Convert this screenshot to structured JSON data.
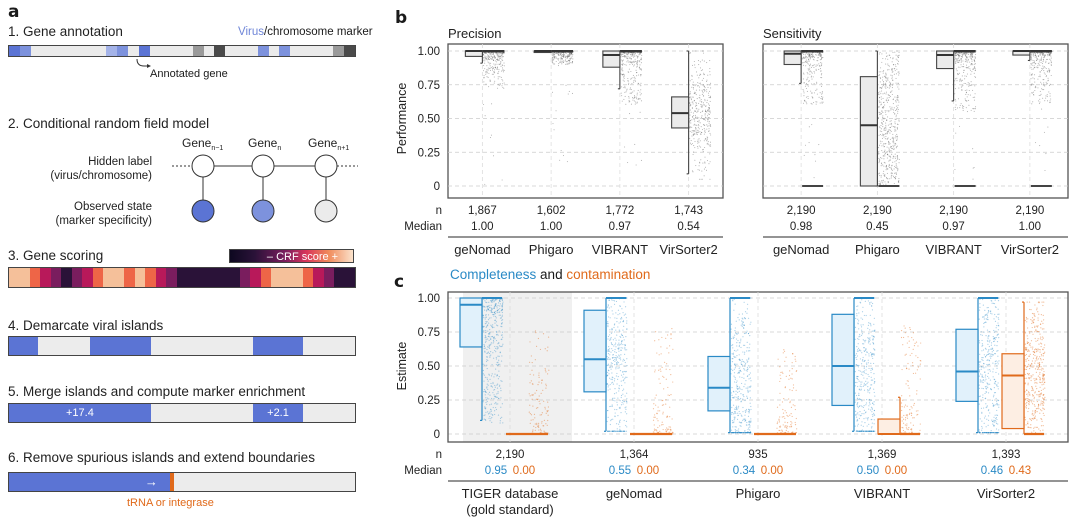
{
  "panel_a": {
    "letter": "a",
    "step1": {
      "title": "1. Gene annotation",
      "legend_virus": "Virus",
      "legend_rest": "/chromosome marker",
      "annotation": "Annotated gene",
      "colors": {
        "virus_strong": "#5b74d4",
        "virus_mid": "#7d92dd",
        "virus_light": "#a4b3e8",
        "chrom_mid": "#9a9a9a",
        "chrom_dark": "#4a4a4a",
        "none": "#ebebeb"
      },
      "segments": [
        "virus_strong",
        "virus_mid",
        "none",
        "none",
        "none",
        "none",
        "none",
        "none",
        "none",
        "virus_light",
        "virus_mid",
        "none",
        "virus_strong",
        "none",
        "none",
        "none",
        "none",
        "chrom_mid",
        "none",
        "chrom_dark",
        "none",
        "none",
        "none",
        "virus_mid",
        "none",
        "virus_mid",
        "none",
        "none",
        "none",
        "none",
        "chrom_mid",
        "chrom_dark"
      ]
    },
    "step2": {
      "title": "2. Conditional random field model",
      "genes": [
        "Gene",
        "Gene",
        "Gene"
      ],
      "gene_subscripts": [
        "n−1",
        "n",
        "n+1"
      ],
      "hidden_label": "Hidden label",
      "hidden_label_sub": "(virus/chromosome)",
      "observed_label": "Observed state",
      "observed_label_sub": "(marker specificity)",
      "observed_colors": [
        "#5b74d4",
        "#7d92dd",
        "#ebebeb"
      ]
    },
    "step3": {
      "title": "3. Gene scoring",
      "colorbar_label": "– CRF score +",
      "segments": [
        "#f5c09a",
        "#f5c09a",
        "#ee6547",
        "#b8195a",
        "#7a1d5e",
        "#2a1238",
        "#7a1d5e",
        "#b8195a",
        "#ee6547",
        "#f5c09a",
        "#f5c09a",
        "#ee6547",
        "#f5c09a",
        "#ee6547",
        "#b8195a",
        "#7a1d5e",
        "#2a1238",
        "#2a1238",
        "#2a1238",
        "#2a1238",
        "#2a1238",
        "#2a1238",
        "#7a1d5e",
        "#b8195a",
        "#ee6547",
        "#f5c09a",
        "#f5c09a",
        "#f5c09a",
        "#ee6547",
        "#b8195a",
        "#7a1d5e",
        "#2a1238",
        "#2a1238"
      ]
    },
    "step4": {
      "title": "4. Demarcate viral islands",
      "islands": [
        [
          0,
          0.085
        ],
        [
          0.235,
          0.41
        ],
        [
          0.705,
          0.85
        ]
      ]
    },
    "step5": {
      "title": "5. Merge islands and compute marker enrichment",
      "islands": [
        {
          "range": [
            0,
            0.41
          ],
          "label": "+17.4"
        },
        {
          "range": [
            0.705,
            0.85
          ],
          "label": "+2.1"
        }
      ]
    },
    "step6": {
      "title": "6. Remove spurious islands and extend boundaries",
      "island_end": 0.465,
      "marker_label": "tRNA or integrase",
      "arrow": "→"
    },
    "virus_color": "#5b74d4",
    "marker_color": "#e06a1b"
  },
  "panel_b": {
    "letter": "b",
    "row_n_label": "n",
    "row_median_label": "Median",
    "chart_data": [
      {
        "type": "box",
        "title": "Precision",
        "ylabel": "Performance",
        "ylim": [
          0,
          1
        ],
        "yticks": [
          "0",
          "0.25",
          "0.50",
          "0.75",
          "1.00"
        ],
        "categories": [
          "geNomad",
          "Phigaro",
          "VIBRANT",
          "VirSorter2"
        ],
        "n": [
          "1,867",
          "1,602",
          "1,772",
          "1,743"
        ],
        "median": [
          "1.00",
          "1.00",
          "0.97",
          "0.54"
        ],
        "boxes": [
          {
            "q1": 0.96,
            "median": 1.0,
            "q3": 1.0,
            "whisker_low": 0.91,
            "whisker_high": 1.0,
            "points_spread": [
              0.72,
              1.0
            ],
            "sparse_low": 0.0
          },
          {
            "q1": 0.995,
            "median": 1.0,
            "q3": 1.0,
            "whisker_low": 0.99,
            "whisker_high": 1.0,
            "points_spread": [
              0.9,
              1.0
            ],
            "sparse_low": 0.15
          },
          {
            "q1": 0.88,
            "median": 0.97,
            "q3": 1.0,
            "whisker_low": 0.72,
            "whisker_high": 1.0,
            "points_spread": [
              0.6,
              1.0
            ],
            "sparse_low": 0.1
          },
          {
            "q1": 0.43,
            "median": 0.54,
            "q3": 0.66,
            "whisker_low": 0.09,
            "whisker_high": 1.0,
            "points_spread": [
              0.1,
              1.0
            ],
            "sparse_low": 0.05
          }
        ]
      },
      {
        "type": "box",
        "title": "Sensitivity",
        "ylim": [
          0,
          1
        ],
        "categories": [
          "geNomad",
          "Phigaro",
          "VIBRANT",
          "VirSorter2"
        ],
        "n": [
          "2,190",
          "2,190",
          "2,190",
          "2,190"
        ],
        "median": [
          "0.98",
          "0.45",
          "0.97",
          "1.00"
        ],
        "boxes": [
          {
            "q1": 0.9,
            "median": 0.98,
            "q3": 1.0,
            "whisker_low": 0.76,
            "whisker_high": 1.0,
            "points_spread": [
              0.6,
              1.0
            ],
            "sparse_low": 0.0,
            "zero_bar": true
          },
          {
            "q1": 0.0,
            "median": 0.45,
            "q3": 0.81,
            "whisker_low": 0.0,
            "whisker_high": 1.0,
            "points_spread": [
              0.0,
              1.0
            ],
            "sparse_low": 0.0,
            "zero_bar": true
          },
          {
            "q1": 0.87,
            "median": 0.97,
            "q3": 1.0,
            "whisker_low": 0.63,
            "whisker_high": 1.0,
            "points_spread": [
              0.55,
              1.0
            ],
            "sparse_low": 0.0,
            "zero_bar": true
          },
          {
            "q1": 0.97,
            "median": 1.0,
            "q3": 1.0,
            "whisker_low": 0.93,
            "whisker_high": 1.0,
            "points_spread": [
              0.6,
              1.0
            ],
            "sparse_low": 0.0,
            "zero_bar": true
          }
        ]
      }
    ]
  },
  "panel_c": {
    "letter": "c",
    "title_completeness": "Completeness",
    "title_and": " and ",
    "title_contamination": "contamination",
    "row_n_label": "n",
    "row_median_label": "Median",
    "completeness_color": "#2a8ac6",
    "contamination_color": "#e06a1b",
    "chart_data": {
      "type": "box",
      "ylabel": "Estimate",
      "ylim": [
        0,
        1
      ],
      "yticks": [
        "0",
        "0.25",
        "0.50",
        "0.75",
        "1.00"
      ],
      "categories": [
        "TIGER database",
        "geNomad",
        "Phigaro",
        "VIBRANT",
        "VirSorter2"
      ],
      "category_sublabels": [
        "(gold standard)",
        "",
        "",
        "",
        ""
      ],
      "highlight_category": 0,
      "n": [
        "2,190",
        "1,364",
        "935",
        "1,369",
        "1,393"
      ],
      "median_completeness": [
        "0.95",
        "0.55",
        "0.34",
        "0.50",
        "0.46"
      ],
      "median_contamination": [
        "0.00",
        "0.00",
        "0.00",
        "0.00",
        "0.43"
      ],
      "series": [
        {
          "name": "Completeness",
          "boxes": [
            {
              "q1": 0.64,
              "median": 0.95,
              "q3": 1.0,
              "whisker_low": 0.1,
              "whisker_high": 1.0
            },
            {
              "q1": 0.31,
              "median": 0.55,
              "q3": 0.91,
              "whisker_low": 0.02,
              "whisker_high": 1.0
            },
            {
              "q1": 0.17,
              "median": 0.34,
              "q3": 0.57,
              "whisker_low": 0.01,
              "whisker_high": 1.0
            },
            {
              "q1": 0.21,
              "median": 0.5,
              "q3": 0.88,
              "whisker_low": 0.02,
              "whisker_high": 1.0
            },
            {
              "q1": 0.24,
              "median": 0.46,
              "q3": 0.77,
              "whisker_low": 0.01,
              "whisker_high": 1.0
            }
          ]
        },
        {
          "name": "Contamination",
          "boxes": [
            {
              "q1": 0.0,
              "median": 0.0,
              "q3": 0.0,
              "whisker_low": 0.0,
              "whisker_high": 0.0,
              "spread": 0.78
            },
            {
              "q1": 0.0,
              "median": 0.0,
              "q3": 0.0,
              "whisker_low": 0.0,
              "whisker_high": 0.0,
              "spread": 0.78
            },
            {
              "q1": 0.0,
              "median": 0.0,
              "q3": 0.0,
              "whisker_low": 0.0,
              "whisker_high": 0.0,
              "spread": 0.62
            },
            {
              "q1": 0.0,
              "median": 0.0,
              "q3": 0.11,
              "whisker_low": 0.0,
              "whisker_high": 0.27,
              "spread": 0.82
            },
            {
              "q1": 0.04,
              "median": 0.43,
              "q3": 0.59,
              "whisker_low": 0.0,
              "whisker_high": 0.97,
              "spread": 0.97
            }
          ]
        }
      ]
    }
  }
}
